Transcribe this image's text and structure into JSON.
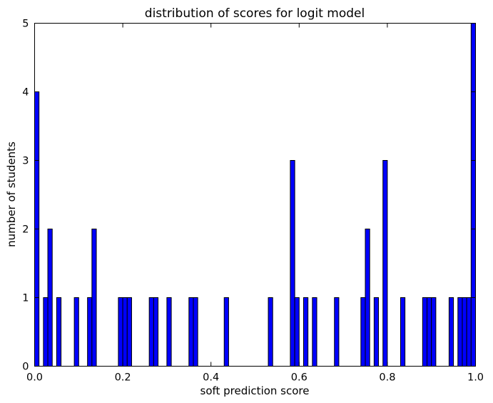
{
  "chart_data": {
    "type": "bar",
    "title": "distribution of scores for logit model",
    "xlabel": "soft prediction score",
    "ylabel": "number of students",
    "xlim": [
      0.0,
      1.0
    ],
    "ylim": [
      0,
      5
    ],
    "xticks": [
      "0.0",
      "0.2",
      "0.4",
      "0.6",
      "0.8",
      "1.0"
    ],
    "yticks": [
      "0",
      "1",
      "2",
      "3",
      "4",
      "5"
    ],
    "bin_width": 0.01,
    "bar_color": "#0000ff",
    "grid": false,
    "bins": [
      {
        "x": 0.0,
        "count": 4
      },
      {
        "x": 0.02,
        "count": 1
      },
      {
        "x": 0.03,
        "count": 2
      },
      {
        "x": 0.05,
        "count": 1
      },
      {
        "x": 0.09,
        "count": 1
      },
      {
        "x": 0.12,
        "count": 1
      },
      {
        "x": 0.13,
        "count": 2
      },
      {
        "x": 0.19,
        "count": 1
      },
      {
        "x": 0.2,
        "count": 1
      },
      {
        "x": 0.21,
        "count": 1
      },
      {
        "x": 0.26,
        "count": 1
      },
      {
        "x": 0.27,
        "count": 1
      },
      {
        "x": 0.3,
        "count": 1
      },
      {
        "x": 0.35,
        "count": 1
      },
      {
        "x": 0.36,
        "count": 1
      },
      {
        "x": 0.43,
        "count": 1
      },
      {
        "x": 0.53,
        "count": 1
      },
      {
        "x": 0.58,
        "count": 3
      },
      {
        "x": 0.59,
        "count": 1
      },
      {
        "x": 0.61,
        "count": 1
      },
      {
        "x": 0.63,
        "count": 1
      },
      {
        "x": 0.68,
        "count": 1
      },
      {
        "x": 0.74,
        "count": 1
      },
      {
        "x": 0.75,
        "count": 2
      },
      {
        "x": 0.77,
        "count": 1
      },
      {
        "x": 0.79,
        "count": 3
      },
      {
        "x": 0.83,
        "count": 1
      },
      {
        "x": 0.88,
        "count": 1
      },
      {
        "x": 0.89,
        "count": 1
      },
      {
        "x": 0.9,
        "count": 1
      },
      {
        "x": 0.94,
        "count": 1
      },
      {
        "x": 0.96,
        "count": 1
      },
      {
        "x": 0.97,
        "count": 1
      },
      {
        "x": 0.98,
        "count": 1
      },
      {
        "x": 0.99,
        "count": 5
      }
    ]
  }
}
